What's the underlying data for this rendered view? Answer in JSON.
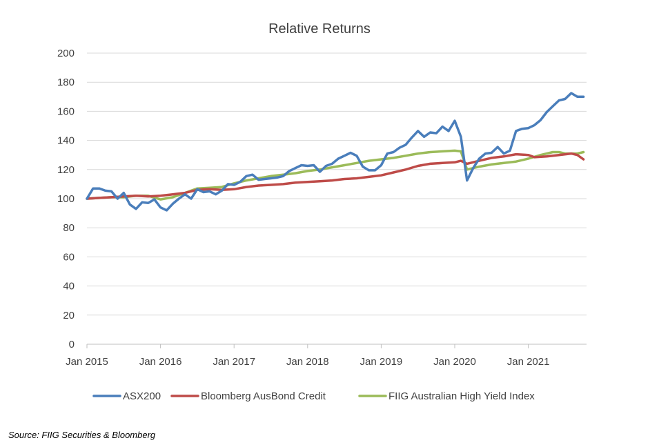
{
  "chart_data": {
    "type": "line",
    "title": "Relative Returns",
    "xlabel": "",
    "ylabel": "",
    "ylim": [
      0,
      200
    ],
    "y_ticks": [
      "0",
      "20",
      "40",
      "60",
      "80",
      "100",
      "120",
      "140",
      "160",
      "180",
      "200"
    ],
    "x_tick_labels": [
      "Jan 2015",
      "Jan 2016",
      "Jan 2017",
      "Jan 2018",
      "Jan 2019",
      "Jan 2020",
      "Jan 2021"
    ],
    "x_unit": "months since Jan 2015",
    "xlim": [
      0,
      81.5
    ],
    "grid": "horizontal",
    "legend_position": "bottom",
    "series": [
      {
        "name": "ASX200",
        "color": "#4A7EBB",
        "points": [
          [
            0,
            100
          ],
          [
            1,
            107
          ],
          [
            2,
            107
          ],
          [
            3,
            105.5
          ],
          [
            4,
            105
          ],
          [
            5,
            100
          ],
          [
            6,
            104
          ],
          [
            7,
            96
          ],
          [
            8,
            93
          ],
          [
            9,
            97.5
          ],
          [
            10,
            97
          ],
          [
            11,
            99.5
          ],
          [
            12,
            94
          ],
          [
            13,
            92
          ],
          [
            14,
            96.5
          ],
          [
            15,
            100
          ],
          [
            16,
            103
          ],
          [
            17,
            100
          ],
          [
            18,
            106.5
          ],
          [
            19,
            104.5
          ],
          [
            20,
            105
          ],
          [
            21,
            103
          ],
          [
            22,
            105.5
          ],
          [
            23,
            110
          ],
          [
            24,
            109.5
          ],
          [
            25,
            111.5
          ],
          [
            26,
            115.5
          ],
          [
            27,
            116.5
          ],
          [
            28,
            113
          ],
          [
            29,
            113.5
          ],
          [
            30,
            114
          ],
          [
            31,
            114.5
          ],
          [
            32,
            115.5
          ],
          [
            33,
            119
          ],
          [
            34,
            121
          ],
          [
            35,
            123
          ],
          [
            36,
            122.5
          ],
          [
            37,
            123
          ],
          [
            38,
            118.5
          ],
          [
            39,
            122.5
          ],
          [
            40,
            124
          ],
          [
            41,
            127.5
          ],
          [
            42,
            129.5
          ],
          [
            43,
            131.5
          ],
          [
            44,
            129.5
          ],
          [
            45,
            122
          ],
          [
            46,
            119.5
          ],
          [
            47,
            119.5
          ],
          [
            48,
            123
          ],
          [
            49,
            131
          ],
          [
            50,
            132
          ],
          [
            51,
            135
          ],
          [
            52,
            137
          ],
          [
            53,
            142
          ],
          [
            54,
            146.5
          ],
          [
            55,
            142.5
          ],
          [
            56,
            145.5
          ],
          [
            57,
            145
          ],
          [
            58,
            149.5
          ],
          [
            59,
            146.5
          ],
          [
            60,
            153.5
          ],
          [
            61,
            142.5
          ],
          [
            62,
            112.5
          ],
          [
            63,
            121
          ],
          [
            64,
            127.5
          ],
          [
            65,
            131
          ],
          [
            66,
            131.5
          ],
          [
            67,
            135.5
          ],
          [
            68,
            131
          ],
          [
            69,
            133
          ],
          [
            70,
            146.5
          ],
          [
            71,
            148
          ],
          [
            72,
            148.5
          ],
          [
            73,
            150.5
          ],
          [
            74,
            154
          ],
          [
            75,
            159.5
          ],
          [
            76,
            163.5
          ],
          [
            77,
            167.5
          ],
          [
            78,
            168.5
          ],
          [
            79,
            172.5
          ],
          [
            80,
            170
          ],
          [
            81,
            170
          ]
        ]
      },
      {
        "name": "Bloomberg AusBond Credit",
        "color": "#BE4B48",
        "points": [
          [
            0,
            100
          ],
          [
            2,
            100.5
          ],
          [
            4,
            101
          ],
          [
            6,
            101.5
          ],
          [
            8,
            102
          ],
          [
            10,
            101.5
          ],
          [
            12,
            102
          ],
          [
            14,
            103
          ],
          [
            16,
            104
          ],
          [
            18,
            106
          ],
          [
            20,
            106.5
          ],
          [
            22,
            106
          ],
          [
            24,
            106.5
          ],
          [
            26,
            108
          ],
          [
            28,
            109
          ],
          [
            30,
            109.5
          ],
          [
            32,
            110
          ],
          [
            34,
            111
          ],
          [
            36,
            111.5
          ],
          [
            38,
            112
          ],
          [
            40,
            112.5
          ],
          [
            42,
            113.5
          ],
          [
            44,
            114
          ],
          [
            46,
            115
          ],
          [
            48,
            116
          ],
          [
            50,
            118
          ],
          [
            52,
            120
          ],
          [
            54,
            122.5
          ],
          [
            56,
            124
          ],
          [
            58,
            124.5
          ],
          [
            60,
            125
          ],
          [
            61,
            126
          ],
          [
            62,
            124
          ],
          [
            64,
            126
          ],
          [
            66,
            128
          ],
          [
            68,
            129
          ],
          [
            70,
            130.5
          ],
          [
            72,
            130
          ],
          [
            73,
            128.5
          ],
          [
            75,
            129
          ],
          [
            77,
            130
          ],
          [
            79,
            131
          ],
          [
            80,
            130
          ],
          [
            81,
            127
          ]
        ]
      },
      {
        "name": "FIIG Australian High Yield Index",
        "color": "#9BBB59",
        "points": [
          [
            0,
            100
          ],
          [
            2,
            100.5
          ],
          [
            4,
            101
          ],
          [
            6,
            101
          ],
          [
            8,
            102
          ],
          [
            10,
            102
          ],
          [
            12,
            99.5
          ],
          [
            14,
            101
          ],
          [
            16,
            104
          ],
          [
            18,
            107
          ],
          [
            20,
            107.5
          ],
          [
            22,
            108
          ],
          [
            24,
            110.5
          ],
          [
            26,
            112.5
          ],
          [
            28,
            114
          ],
          [
            30,
            115.5
          ],
          [
            32,
            116.5
          ],
          [
            34,
            117.5
          ],
          [
            36,
            119
          ],
          [
            38,
            120
          ],
          [
            40,
            121.5
          ],
          [
            42,
            123
          ],
          [
            44,
            124.5
          ],
          [
            46,
            126
          ],
          [
            48,
            127
          ],
          [
            50,
            128
          ],
          [
            52,
            129.5
          ],
          [
            54,
            131
          ],
          [
            56,
            132
          ],
          [
            58,
            132.5
          ],
          [
            60,
            133
          ],
          [
            61,
            132.5
          ],
          [
            62,
            120
          ],
          [
            64,
            122
          ],
          [
            66,
            123.5
          ],
          [
            68,
            124.5
          ],
          [
            70,
            125.5
          ],
          [
            72,
            127.5
          ],
          [
            74,
            130
          ],
          [
            76,
            132
          ],
          [
            77,
            132
          ],
          [
            78,
            131
          ],
          [
            80,
            131
          ],
          [
            81,
            132
          ]
        ]
      }
    ]
  },
  "source_note": "Source: FIIG Securities & Bloomberg"
}
